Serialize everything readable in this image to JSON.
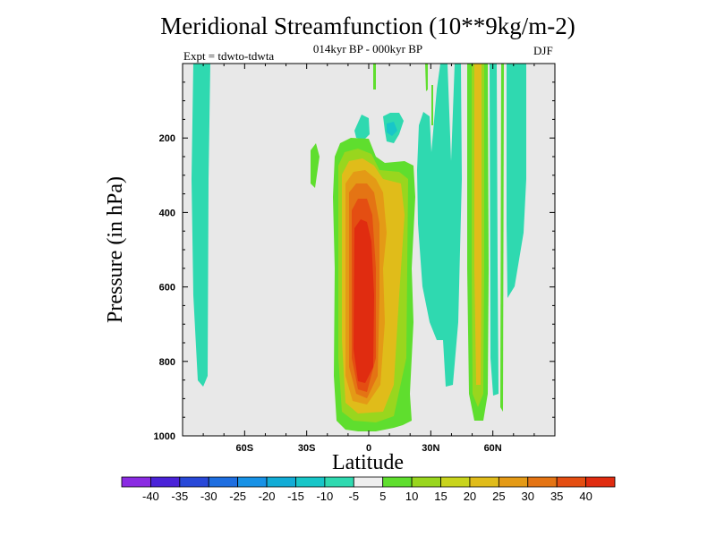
{
  "chart_data": {
    "type": "heatmap",
    "title": "Meridional Streamfunction (10**9kg/m-2)",
    "subtitle": "014kyr BP - 000kyr BP",
    "experiment": "Expt = tdwto-tdwta",
    "season": "DJF",
    "xlabel": "Latitude",
    "ylabel": "Pressure (in hPa)",
    "xlim": [
      -90,
      90
    ],
    "ylim": [
      1000,
      0
    ],
    "x_ticks": [
      {
        "value": -60,
        "label": "60S"
      },
      {
        "value": -30,
        "label": "30S"
      },
      {
        "value": 0,
        "label": "0"
      },
      {
        "value": 30,
        "label": "30N"
      },
      {
        "value": 60,
        "label": "60N"
      }
    ],
    "y_ticks": [
      {
        "value": 200,
        "label": "200"
      },
      {
        "value": 400,
        "label": "400"
      },
      {
        "value": 600,
        "label": "600"
      },
      {
        "value": 800,
        "label": "800"
      },
      {
        "value": 1000,
        "label": "1000"
      }
    ],
    "colorbar": {
      "levels": [
        "-40",
        "-35",
        "-30",
        "-25",
        "-20",
        "-15",
        "-10",
        "-5",
        "5",
        "10",
        "15",
        "20",
        "25",
        "30",
        "35",
        "40"
      ],
      "colors": [
        "#8a2be2",
        "#4a22d8",
        "#2848d8",
        "#1e6ee0",
        "#1892e6",
        "#12acd6",
        "#18c6c8",
        "#2fd9b0",
        "#eeeeee",
        "#5fde2e",
        "#99d61e",
        "#c8d41c",
        "#e0bc1a",
        "#e49a16",
        "#e47414",
        "#e44e12",
        "#e02c10"
      ]
    },
    "features": [
      {
        "name": "tropical positive cell",
        "lat_range": [
          -15,
          15
        ],
        "p_range": [
          180,
          980
        ],
        "max_value": 40,
        "center": {
          "lat": -3,
          "p": 650
        }
      },
      {
        "name": "weak negative band 80S",
        "lat_range": [
          -85,
          -77
        ],
        "p_range": [
          0,
          870
        ],
        "value": -10
      },
      {
        "name": "NH negative bands",
        "lat_range": [
          25,
          50
        ],
        "p_range": [
          0,
          920
        ],
        "value": -10
      },
      {
        "name": "positive band 50N",
        "lat_range": [
          46,
          56
        ],
        "p_range": [
          0,
          970
        ],
        "max_value": 20
      },
      {
        "name": "negative band 66N",
        "lat_range": [
          62,
          72
        ],
        "p_range": [
          0,
          620
        ],
        "value": -10
      }
    ]
  }
}
